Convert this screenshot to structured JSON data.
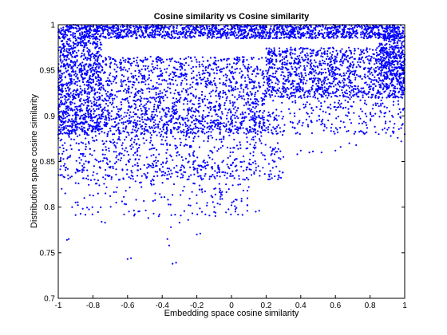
{
  "chart_data": {
    "type": "scatter",
    "title": "Cosine similarity vs Cosine similarity",
    "xlabel": "Embedding space cosine similarity",
    "ylabel": "Distribution space cosine similarity",
    "xlim": [
      -1,
      1
    ],
    "ylim": [
      0.7,
      1
    ],
    "xticks": [
      -1,
      -0.8,
      -0.6,
      -0.4,
      -0.2,
      0,
      0.2,
      0.4,
      0.6,
      0.8,
      1
    ],
    "xtick_labels": [
      "-1",
      "-0.8",
      "-0.6",
      "-0.4",
      "-0.2",
      "0",
      "0.2",
      "0.4",
      "0.6",
      "0.8",
      "1"
    ],
    "yticks": [
      0.7,
      0.75,
      0.8,
      0.85,
      0.9,
      0.95,
      1
    ],
    "ytick_labels": [
      "0.7",
      "0.75",
      "0.8",
      "0.85",
      "0.9",
      "0.95",
      "1"
    ],
    "grid": false,
    "marker_color": "#0000ff",
    "points": [
      [
        -0.95,
        0.764
      ],
      [
        -0.94,
        0.765
      ],
      [
        -0.6,
        0.743
      ],
      [
        -0.58,
        0.744
      ],
      [
        -0.36,
        0.758
      ],
      [
        -0.37,
        0.765
      ],
      [
        -0.34,
        0.738
      ],
      [
        -0.32,
        0.739
      ],
      [
        -0.2,
        0.77
      ],
      [
        -0.18,
        0.771
      ],
      [
        -0.35,
        0.778
      ],
      [
        -0.3,
        0.783
      ],
      [
        -0.75,
        0.784
      ],
      [
        -0.73,
        0.783
      ],
      [
        -0.62,
        0.792
      ],
      [
        -0.48,
        0.788
      ],
      [
        -0.42,
        0.79
      ],
      [
        -0.25,
        0.786
      ],
      [
        -0.15,
        0.792
      ],
      [
        0.14,
        0.795
      ],
      [
        0.16,
        0.796
      ],
      [
        0.0,
        0.802
      ],
      [
        0.02,
        0.801
      ],
      [
        -0.08,
        0.804
      ],
      [
        -0.92,
        0.8
      ],
      [
        -0.9,
        0.805
      ],
      [
        -0.98,
        0.82
      ],
      [
        -0.96,
        0.815
      ],
      [
        -0.85,
        0.81
      ],
      [
        -0.7,
        0.812
      ],
      [
        -0.55,
        0.808
      ],
      [
        -0.52,
        0.822
      ],
      [
        -0.44,
        0.815
      ],
      [
        -0.28,
        0.818
      ],
      [
        -0.22,
        0.826
      ],
      [
        -0.1,
        0.82
      ],
      [
        0.05,
        0.825
      ],
      [
        0.1,
        0.822
      ],
      [
        -0.65,
        0.83
      ],
      [
        -0.8,
        0.835
      ],
      [
        0.45,
        0.86
      ],
      [
        0.47,
        0.861
      ],
      [
        0.52,
        0.86
      ],
      [
        0.6,
        0.862
      ],
      [
        0.63,
        0.866
      ],
      [
        0.72,
        0.868
      ],
      [
        0.68,
        0.87
      ],
      [
        0.92,
        0.878
      ],
      [
        0.96,
        0.876
      ],
      [
        0.98,
        0.872
      ],
      [
        1.0,
        0.88
      ],
      [
        0.9,
        0.885
      ],
      [
        0.85,
        0.88
      ],
      [
        0.78,
        0.882
      ],
      [
        0.4,
        0.862
      ],
      [
        0.38,
        0.858
      ],
      [
        0.25,
        0.85
      ],
      [
        0.3,
        0.855
      ]
    ],
    "clusters": [
      {
        "x": [
          -1.0,
          1.0
        ],
        "y": [
          0.985,
          1.0
        ],
        "n": 1600
      },
      {
        "x": [
          -1.0,
          -0.75
        ],
        "y": [
          0.88,
          0.985
        ],
        "n": 900
      },
      {
        "x": [
          -0.75,
          0.2
        ],
        "y": [
          0.88,
          0.965
        ],
        "n": 1400
      },
      {
        "x": [
          0.2,
          1.0
        ],
        "y": [
          0.92,
          0.975
        ],
        "n": 1100
      },
      {
        "x": [
          0.85,
          1.0
        ],
        "y": [
          0.93,
          0.99
        ],
        "n": 300
      },
      {
        "x": [
          -1.0,
          0.3
        ],
        "y": [
          0.83,
          0.9
        ],
        "n": 800
      },
      {
        "x": [
          0.2,
          1.0
        ],
        "y": [
          0.88,
          0.93
        ],
        "n": 300
      },
      {
        "x": [
          -0.9,
          0.1
        ],
        "y": [
          0.79,
          0.85
        ],
        "n": 200
      }
    ]
  }
}
